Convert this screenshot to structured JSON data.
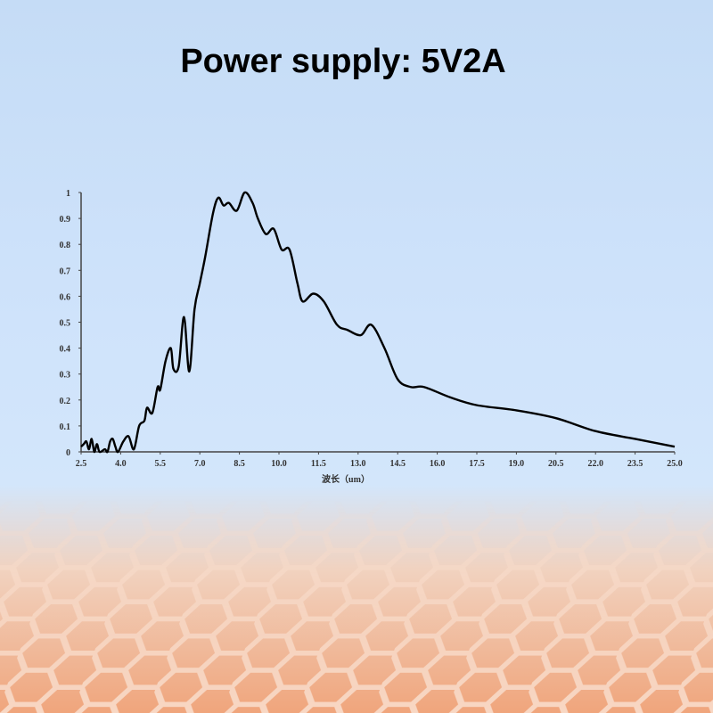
{
  "title": "Power supply: 5V2A",
  "colors": {
    "background_top": "#c5dcf6",
    "mesh": "#f0a57c",
    "line": "#000000"
  },
  "chart_data": {
    "type": "line",
    "title": "",
    "xlabel": "波长（um）",
    "ylabel": "",
    "xlim": [
      2.5,
      25.0
    ],
    "ylim": [
      0,
      1
    ],
    "grid": false,
    "x_ticks": [
      "2.5",
      "4.0",
      "5.5",
      "7.0",
      "8.5",
      "10.0",
      "11.5",
      "13.0",
      "14.5",
      "16.0",
      "17.5",
      "19.0",
      "20.5",
      "22.0",
      "23.5",
      "25.0"
    ],
    "y_ticks": [
      "0",
      "0.1",
      "0.2",
      "0.3",
      "0.4",
      "0.5",
      "0.6",
      "0.7",
      "0.8",
      "0.9",
      "1"
    ],
    "series": [
      {
        "x": [
          2.5,
          2.6,
          2.7,
          2.8,
          2.9,
          3.0,
          3.1,
          3.2,
          3.4,
          3.5,
          3.6,
          3.7,
          3.8,
          3.9,
          4.1,
          4.3,
          4.5,
          4.7,
          4.9,
          5.0,
          5.2,
          5.4,
          5.5,
          5.7,
          5.9,
          6.0,
          6.2,
          6.4,
          6.6,
          6.8,
          7.0,
          7.2,
          7.5,
          7.7,
          7.9,
          8.1,
          8.4,
          8.7,
          9.0,
          9.2,
          9.5,
          9.8,
          10.1,
          10.4,
          10.7,
          10.9,
          11.3,
          11.7,
          12.2,
          12.6,
          13.1,
          13.5,
          14.0,
          14.5,
          15.0,
          15.5,
          16.5,
          17.5,
          19.0,
          20.5,
          22.0,
          23.5,
          25.0
        ],
        "y": [
          0.02,
          0.03,
          0.04,
          0.01,
          0.05,
          0.0,
          0.03,
          0.0,
          0.01,
          0.0,
          0.04,
          0.05,
          0.02,
          0.0,
          0.04,
          0.06,
          0.01,
          0.1,
          0.12,
          0.17,
          0.15,
          0.25,
          0.24,
          0.35,
          0.4,
          0.32,
          0.33,
          0.52,
          0.31,
          0.55,
          0.65,
          0.75,
          0.92,
          0.98,
          0.95,
          0.96,
          0.93,
          1.0,
          0.96,
          0.9,
          0.84,
          0.86,
          0.78,
          0.78,
          0.65,
          0.58,
          0.61,
          0.58,
          0.49,
          0.47,
          0.45,
          0.49,
          0.4,
          0.28,
          0.25,
          0.25,
          0.21,
          0.18,
          0.16,
          0.13,
          0.08,
          0.05,
          0.02
        ]
      }
    ]
  }
}
